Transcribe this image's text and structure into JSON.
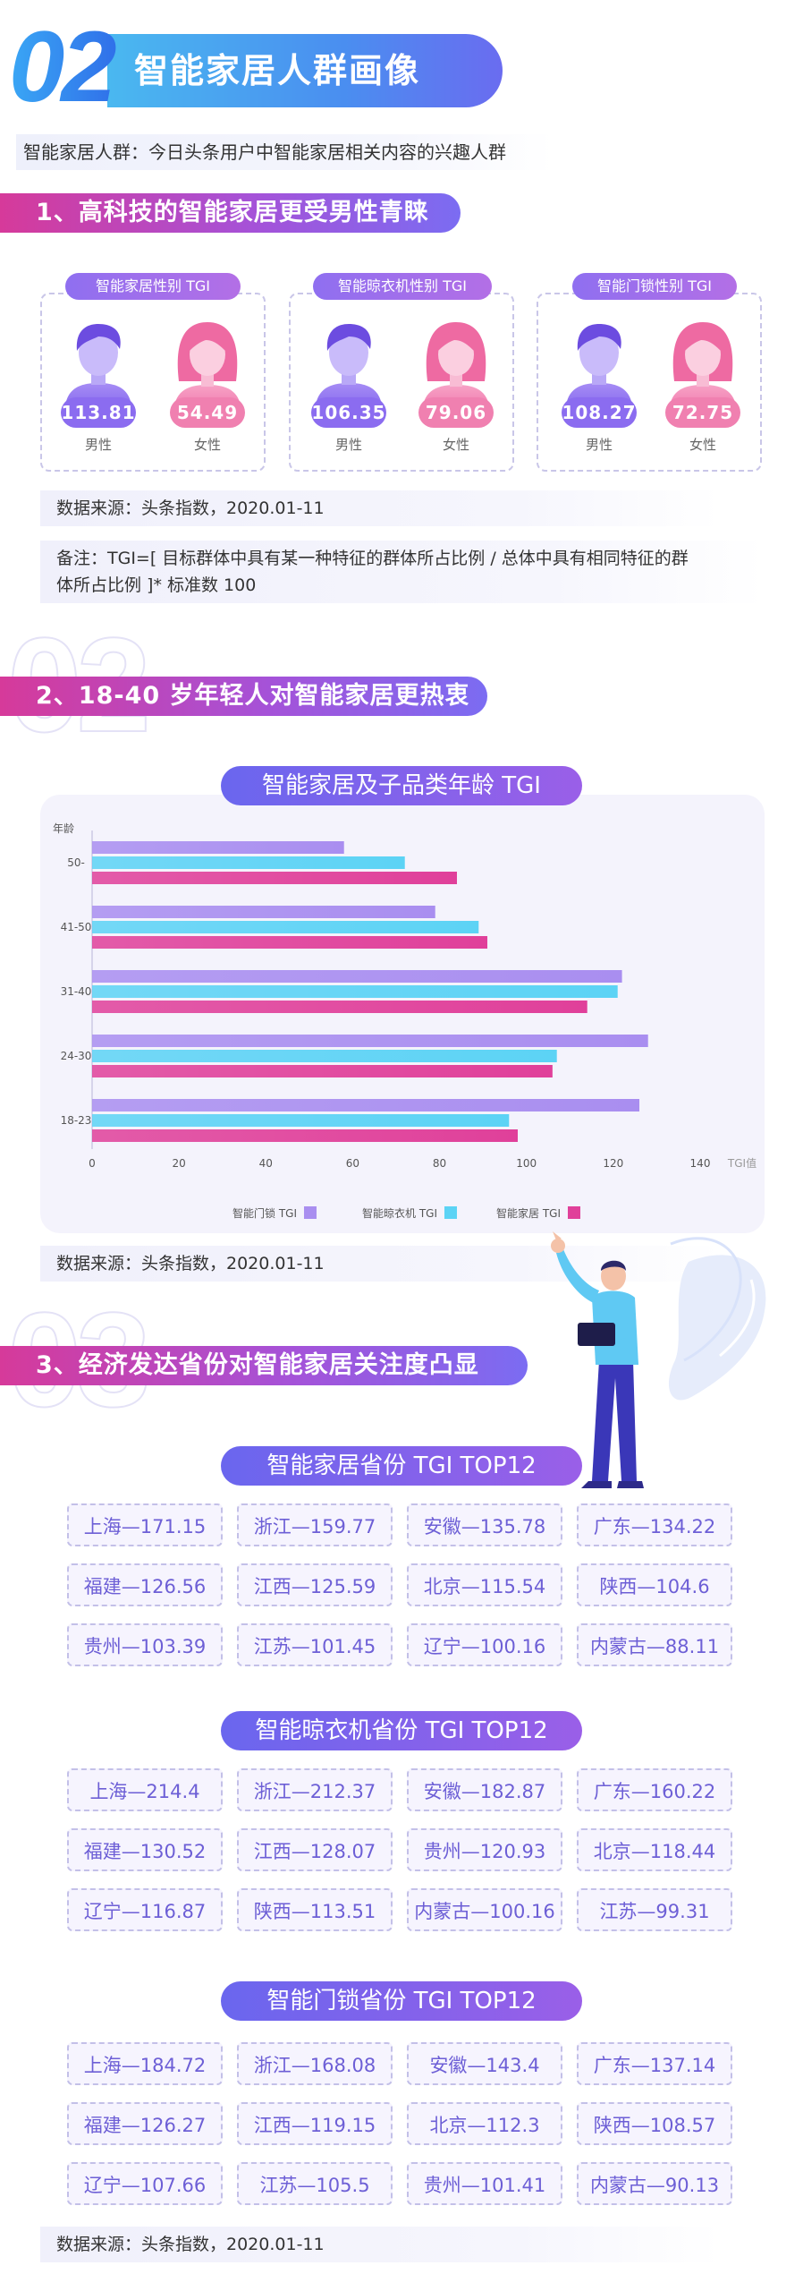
{
  "header": {
    "number": "02",
    "title": "智能家居人群画像",
    "subtitle": "智能家居人群：今日头条用户中智能家居相关内容的兴趣人群"
  },
  "section1": {
    "title": "1、高科技的智能家居更受男性青睐",
    "cards": [
      {
        "title": "智能家居性别 TGI",
        "male": "113.81",
        "female": "54.49",
        "male_label": "男性",
        "female_label": "女性"
      },
      {
        "title": "智能晾衣机性别 TGI",
        "male": "106.35",
        "female": "79.06",
        "male_label": "男性",
        "female_label": "女性"
      },
      {
        "title": "智能门锁性别 TGI",
        "male": "108.27",
        "female": "72.75",
        "male_label": "男性",
        "female_label": "女性"
      }
    ],
    "source": "数据来源：头条指数，2020.01-11",
    "note_line1": "备注：TGI=[ 目标群体中具有某一种特征的群体所占比例 / 总体中具有相同特征的群",
    "note_line2": "体所占比例 ]* 标准数 100"
  },
  "section2": {
    "deco": "02",
    "title": "2、18-40 岁年轻人对智能家居更热衷",
    "source": "数据来源：头条指数，2020.01-11"
  },
  "chart_data": {
    "type": "bar",
    "orientation": "horizontal",
    "title": "智能家居及子品类年龄 TGI",
    "ylabel": "年龄",
    "xlabel": "TGI值",
    "categories": [
      "50-",
      "41-50",
      "31-40",
      "24-30",
      "18-23"
    ],
    "xlim": [
      0,
      140
    ],
    "xticks": [
      0,
      20,
      40,
      60,
      80,
      100,
      120,
      140
    ],
    "legend_position": "bottom",
    "series": [
      {
        "name": "智能门锁 TGI",
        "color": "#a98ef0",
        "values": [
          58,
          79,
          122,
          128,
          126
        ]
      },
      {
        "name": "智能晾衣机 TGI",
        "color": "#5cd3f5",
        "values": [
          72,
          89,
          121,
          107,
          96
        ]
      },
      {
        "name": "智能家居 TGI",
        "color": "#e0409a",
        "values": [
          84,
          91,
          114,
          106,
          98
        ]
      }
    ]
  },
  "section3": {
    "deco": "03",
    "title": "3、经济发达省份对智能家居关注度凸显",
    "groups": [
      {
        "title": "智能家居省份 TGI TOP12",
        "items": [
          "上海—171.15",
          "浙江—159.77",
          "安徽—135.78",
          "广东—134.22",
          "福建—126.56",
          "江西—125.59",
          "北京—115.54",
          "陕西—104.6",
          "贵州—103.39",
          "江苏—101.45",
          "辽宁—100.16",
          "内蒙古—88.11"
        ]
      },
      {
        "title": "智能晾衣机省份 TGI TOP12",
        "items": [
          "上海—214.4",
          "浙江—212.37",
          "安徽—182.87",
          "广东—160.22",
          "福建—130.52",
          "江西—128.07",
          "贵州—120.93",
          "北京—118.44",
          "辽宁—116.87",
          "陕西—113.51",
          "内蒙古—100.16",
          "江苏—99.31"
        ]
      },
      {
        "title": "智能门锁省份 TGI TOP12",
        "items": [
          "上海—184.72",
          "浙江—168.08",
          "安徽—143.4",
          "广东—137.14",
          "福建—126.27",
          "江西—119.15",
          "北京—112.3",
          "陕西—108.57",
          "辽宁—107.66",
          "江苏—105.5",
          "贵州—101.41",
          "内蒙古—90.13"
        ]
      }
    ],
    "source": "数据来源：头条指数，2020.01-11"
  },
  "colors": {
    "male": "#8b6cf0",
    "female": "#f080b0",
    "accent_pink": "#d63a9a",
    "accent_purple": "#7b6cf2"
  }
}
